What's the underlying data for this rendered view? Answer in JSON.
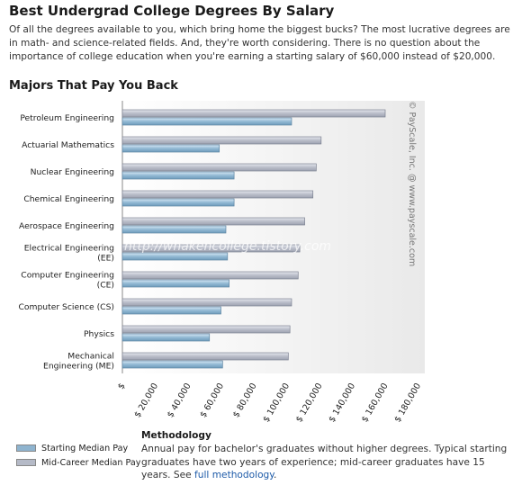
{
  "page": {
    "title": "Best Undergrad College Degrees By Salary",
    "intro": "Of all the degrees available to you, which bring home the biggest bucks? The most lucrative degrees are in math- and science-related fields. And, they're worth considering. There is no question about the importance of college education when you're earning a starting salary of $60,000 instead of $20,000.",
    "section_title": "Majors That Pay You Back"
  },
  "chart_data": {
    "type": "bar",
    "orientation": "horizontal",
    "categories": [
      [
        "Petroleum Engineering"
      ],
      [
        "Actuarial Mathematics"
      ],
      [
        "Nuclear Engineering"
      ],
      [
        "Chemical Engineering"
      ],
      [
        "Aerospace Engineering"
      ],
      [
        "Electrical Engineering",
        "(EE)"
      ],
      [
        "Computer Engineering",
        "(CE)"
      ],
      [
        "Computer Science (CS)"
      ],
      [
        "Physics"
      ],
      [
        "Mechanical",
        "Engineering (ME)"
      ]
    ],
    "series": [
      {
        "name": "Mid-Career Median Pay",
        "color": "#b5bac7",
        "values": [
          160000,
          121000,
          118000,
          116000,
          111000,
          108000,
          107000,
          103000,
          102000,
          101000
        ]
      },
      {
        "name": "Starting Median Pay",
        "color": "#8fb4cf",
        "values": [
          103000,
          59000,
          68000,
          68000,
          63000,
          64000,
          65000,
          60000,
          53000,
          61000
        ]
      }
    ],
    "x_ticks": [
      "$",
      "$ 20,000",
      "$ 40,000",
      "$ 60,000",
      "$ 80,000",
      "$ 100,000",
      "$ 120,000",
      "$ 140,000",
      "$ 160,000",
      "$ 180,000"
    ],
    "xlim": [
      0,
      180000
    ],
    "grid": false,
    "credit": "© PayScale, Inc. @ www.payscale.com",
    "watermark": "http://whakencollege.tistory.com"
  },
  "legend": {
    "starting": {
      "label": "Starting Median Pay",
      "color": "#8fb4cf"
    },
    "midcareer": {
      "label": "Mid-Career Median Pay",
      "color": "#b5bac7"
    }
  },
  "methodology": {
    "title": "Methodology",
    "text": "Annual pay for bachelor's graduates without higher degrees. Typical starting graduates have two years of experience; mid-career graduates have 15 years. See ",
    "link": "full methodology",
    "end": "."
  }
}
